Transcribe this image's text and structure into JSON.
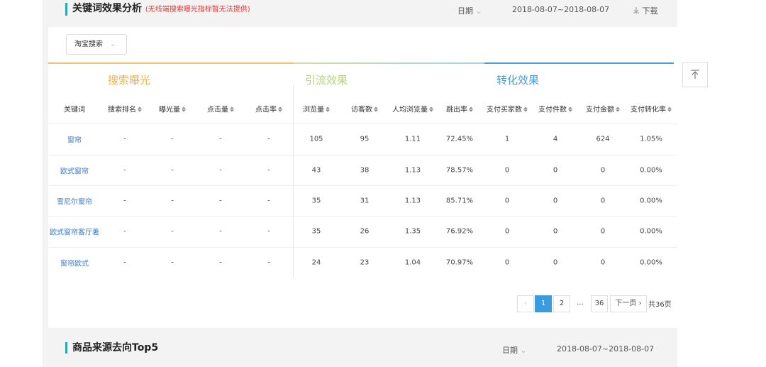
{
  "header": {
    "title": "关键词效果分析",
    "note": "(无线端搜索曝光指标暂无法提供)",
    "date_label": "日期",
    "date_range": "2018-08-07~2018-08-07",
    "download": "下载"
  },
  "filter": "淘宝搜索",
  "groups": [
    "搜索曝光",
    "引流效果",
    "转化效果"
  ],
  "table": {
    "columns": [
      "关键词",
      "搜索排名",
      "曝光量",
      "点击量",
      "点击率",
      "浏览量",
      "访客数",
      "人均浏览量",
      "跳出率",
      "支付买家数",
      "支付件数",
      "支付金额",
      "支付转化率"
    ],
    "rows": [
      [
        "窗帘",
        "-",
        "-",
        "-",
        "-",
        "105",
        "95",
        "1.11",
        "72.45%",
        "1",
        "4",
        "624",
        "1.05%"
      ],
      [
        "欧式窗帘",
        "-",
        "-",
        "-",
        "-",
        "43",
        "38",
        "1.13",
        "78.57%",
        "0",
        "0",
        "0",
        "0.00%"
      ],
      [
        "雪尼尔窗帘",
        "-",
        "-",
        "-",
        "-",
        "35",
        "31",
        "1.13",
        "85.71%",
        "0",
        "0",
        "0",
        "0.00%"
      ],
      [
        "欧式窗帘客厅著",
        "-",
        "-",
        "-",
        "-",
        "35",
        "26",
        "1.35",
        "76.92%",
        "0",
        "0",
        "0",
        "0.00%"
      ],
      [
        "窗帘欧式",
        "-",
        "-",
        "-",
        "-",
        "24",
        "23",
        "1.04",
        "70.97%",
        "0",
        "0",
        "0",
        "0.00%"
      ]
    ]
  },
  "pagination": {
    "pages": [
      "1",
      "2",
      "...",
      "36"
    ],
    "next": "下一页",
    "total": "共36页"
  },
  "section2": {
    "title": "商品来源去向Top5",
    "date_label": "日期",
    "date_range": "2018-08-07~2018-08-07"
  }
}
